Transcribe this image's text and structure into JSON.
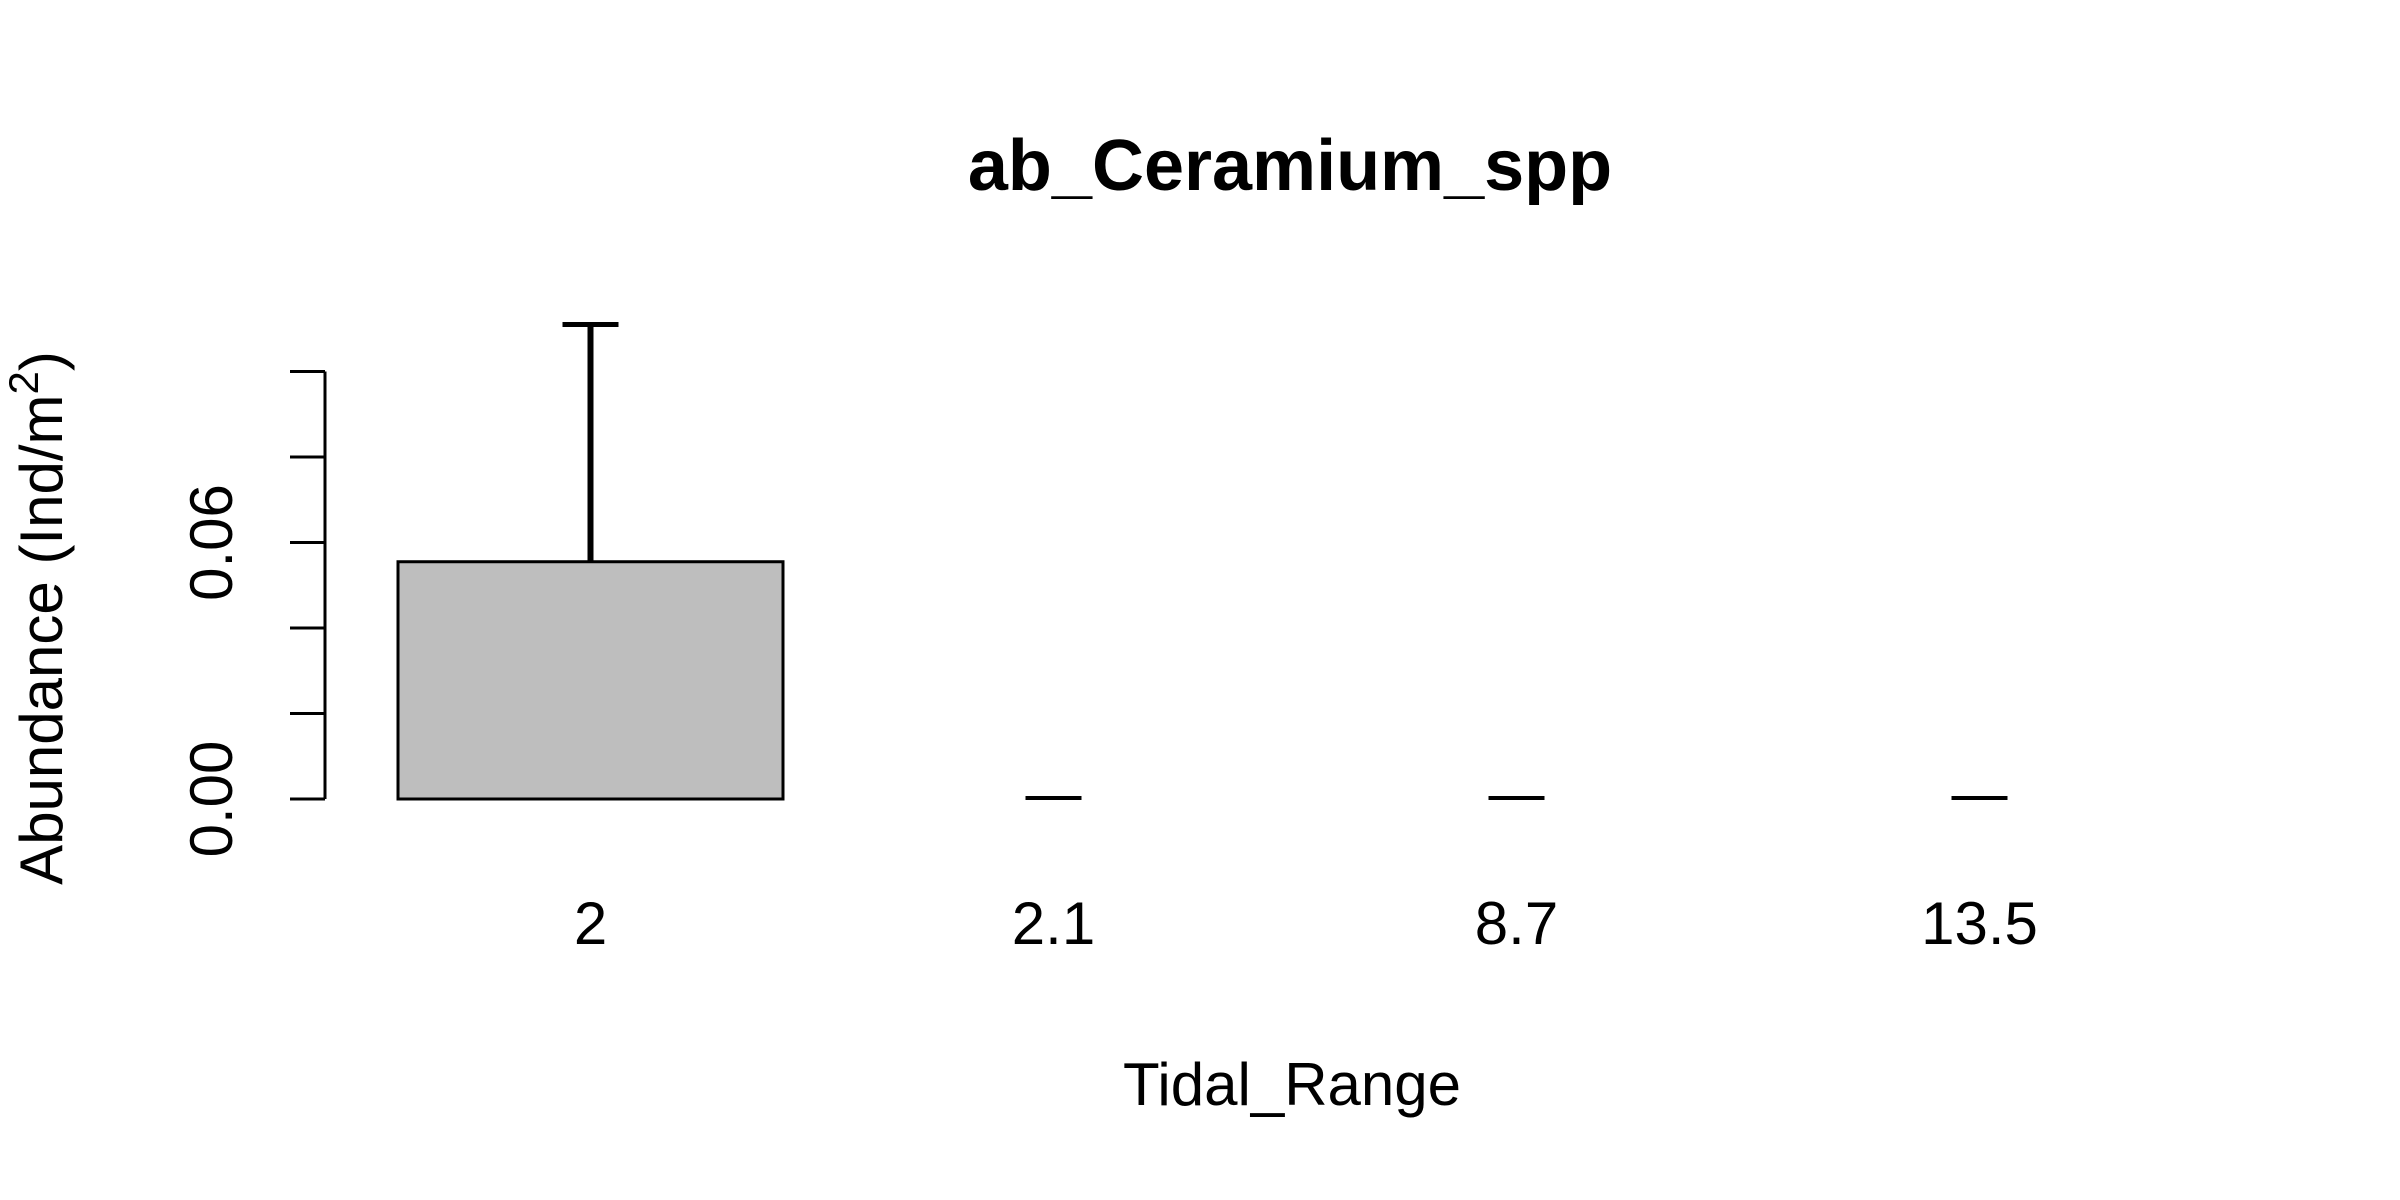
{
  "chart_data": {
    "type": "bar",
    "title": "ab_Ceramium_spp",
    "xlabel": "Tidal_Range",
    "ylabel": {
      "prefix": "Abundance (Ind/m",
      "superscript": "2",
      "suffix": ")"
    },
    "categories": [
      "2",
      "2.1",
      "8.7",
      "13.5"
    ],
    "values": [
      0.0555,
      0,
      0,
      0
    ],
    "error_upper": [
      0.111,
      0,
      0,
      0
    ],
    "ylim": [
      0,
      0.1
    ],
    "yticks": [
      0,
      0.02,
      0.04,
      0.06,
      0.08,
      0.1
    ],
    "ytick_labels": [
      "0.00",
      "",
      "",
      "0.06",
      "",
      ""
    ],
    "bar_color": "#bebebe",
    "bar_edge_color": "#000000",
    "grid": false,
    "legend": "none"
  }
}
